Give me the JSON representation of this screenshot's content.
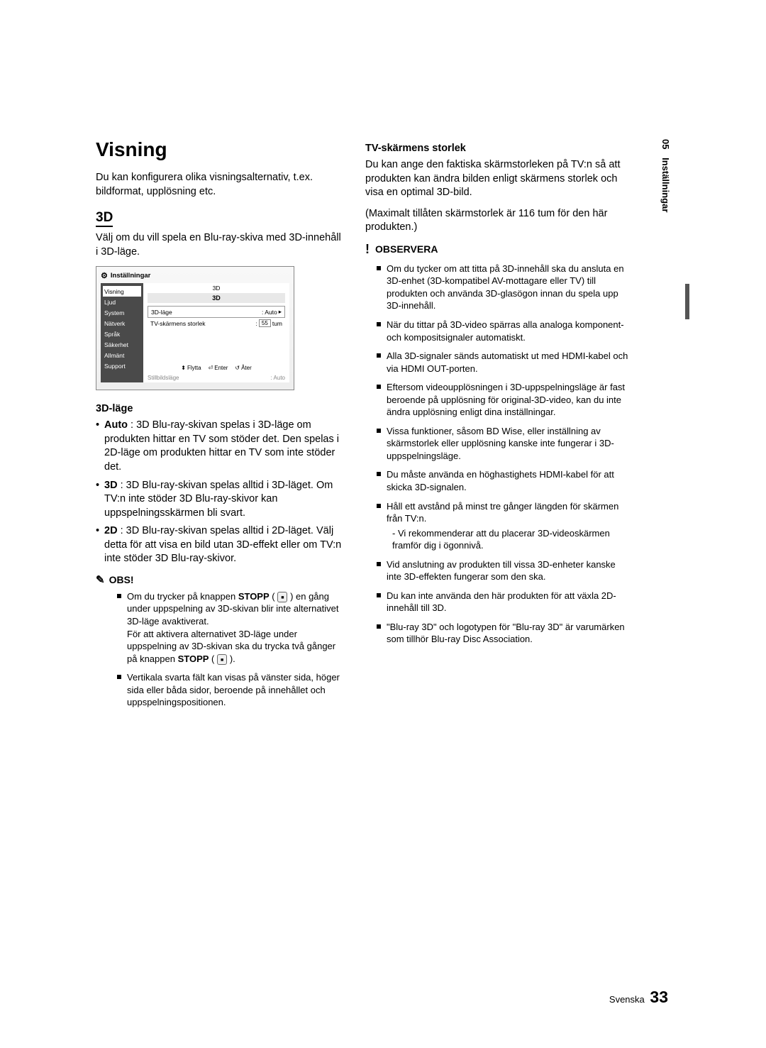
{
  "title": "Visning",
  "intro": "Du kan konfigurera olika visningsalternativ, t.ex. bildformat, upplösning etc.",
  "section3d": {
    "heading": "3D",
    "para": "Välj om du vill spela en Blu-ray-skiva med 3D-innehåll i 3D-läge."
  },
  "screenshot": {
    "header": "Inställningar",
    "sidebar": [
      "Visning",
      "Ljud",
      "System",
      "Nätverk",
      "Språk",
      "Säkerhet",
      "Allmänt",
      "Support"
    ],
    "crumb": "3D",
    "title": "3D",
    "row1": {
      "label": "3D-läge",
      "value": ": Auto",
      "arrow": "▸"
    },
    "row2": {
      "label": "TV-skärmens storlek",
      "value": "55",
      "unit": "tum"
    },
    "nav": {
      "move": "Flytta",
      "enter": "Enter",
      "back": "Åter"
    },
    "bottom": {
      "label": "Stillbildsläge",
      "value": ": Auto"
    }
  },
  "mode3d": {
    "heading": "3D-läge",
    "items": [
      {
        "b": "Auto",
        "t": " : 3D Blu-ray-skivan spelas i 3D-läge om produkten hittar en TV som stöder det. Den spelas i 2D-läge om produkten hittar en TV som inte stöder det."
      },
      {
        "b": "3D",
        "t": " : 3D Blu-ray-skivan spelas alltid i 3D-läget. Om TV:n inte stöder 3D Blu-ray-skivor kan uppspelningsskärmen bli svart."
      },
      {
        "b": "2D",
        "t": " : 3D Blu-ray-skivan spelas alltid i 2D-läget. Välj detta för att visa en bild utan 3D-effekt eller om TV:n inte stöder 3D Blu-ray-skivor."
      }
    ]
  },
  "obs": {
    "label": "OBS!",
    "items": [
      {
        "pre": "Om du trycker på knappen ",
        "bold1": "STOPP",
        "mid": " ( ",
        "post1": " ) en gång under uppspelning av 3D-skivan blir inte alternativet 3D-läge avaktiverat.",
        "line2": "För att aktivera alternativet 3D-läge under uppspelning av 3D-skivan ska du trycka två gånger på knappen ",
        "bold2": "STOPP",
        "close": " )."
      },
      {
        "t": "Vertikala svarta fält kan visas på vänster sida, höger sida eller båda sidor, beroende på innehållet och uppspelningspositionen."
      }
    ]
  },
  "tvsize": {
    "heading": "TV-skärmens storlek",
    "para1": "Du kan ange den faktiska skärmstorleken på TV:n så att produkten kan ändra bilden enligt skärmens storlek och visa en optimal 3D-bild.",
    "para2": "(Maximalt tillåten skärmstorlek är 116 tum för den här produkten.)"
  },
  "observera": {
    "label": "OBSERVERA",
    "items": [
      "Om du tycker om att titta på 3D-innehåll ska du ansluta en 3D-enhet (3D-kompatibel AV-mottagare eller TV) till produkten och använda 3D-glasögon innan du spela upp 3D-innehåll.",
      "När du tittar på 3D-video spärras alla analoga komponent- och kompositsignaler automatiskt.",
      "Alla 3D-signaler sänds automatiskt ut med HDMI-kabel och via HDMI OUT-porten.",
      "Eftersom videoupplösningen i 3D-uppspelningsläge är fast beroende på upplösning för original-3D-video, kan du inte ändra upplösning enligt dina inställningar.",
      "Vissa funktioner, såsom BD Wise, eller inställning av skärmstorlek eller upplösning kanske inte fungerar i 3D-uppspelningsläge.",
      "Du måste använda en höghastighets HDMI-kabel för att skicka 3D-signalen.",
      "Håll ett avstånd på minst tre gånger längden för skärmen från TV:n.",
      "Vid anslutning av produkten till vissa 3D-enheter kanske inte 3D-effekten fungerar som den ska.",
      "Du kan inte använda den här produkten för att växla 2D-innehåll till 3D.",
      "\"Blu-ray 3D\" och logotypen för \"Blu-ray 3D\" är varumärken som tillhör Blu-ray Disc Association."
    ],
    "subdash": "- Vi rekommenderar att du placerar 3D-videoskärmen framför dig i ögonnivå."
  },
  "sideTab": {
    "num": "05",
    "label": "Inställningar"
  },
  "footer": {
    "lang": "Svenska",
    "page": "33"
  }
}
